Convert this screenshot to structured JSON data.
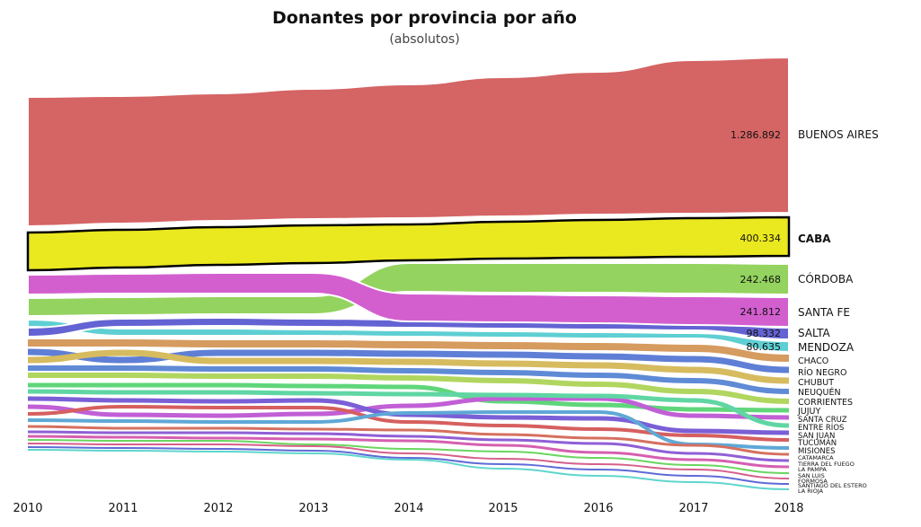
{
  "chart_data": {
    "type": "area",
    "title": "Donantes por provincia por año",
    "subtitle": "(absolutos)",
    "xlabel": "",
    "ylabel": "",
    "x": [
      "2010",
      "2011",
      "2012",
      "2013",
      "2014",
      "2015",
      "2016",
      "2017",
      "2018"
    ],
    "legend": "right, labels at series end",
    "grid": false,
    "highlighted_series": "CABA",
    "series": [
      {
        "name": "BUENOS AIRES",
        "color": "#d56465",
        "value_label": "1.286.892",
        "bold": false
      },
      {
        "name": "CABA",
        "color": "#eae81f",
        "value_label": "400.334",
        "bold": true
      },
      {
        "name": "CÓRDOBA",
        "color": "#94d35f",
        "value_label": "242.468",
        "bold": false
      },
      {
        "name": "SANTA FE",
        "color": "#d35fcf",
        "value_label": "241.812",
        "bold": false
      },
      {
        "name": "SALTA",
        "color": "#6463d3",
        "value_label": "98.332",
        "bold": false
      },
      {
        "name": "MENDOZA",
        "color": "#5ecfd3",
        "value_label": "80.635",
        "bold": false
      },
      {
        "name": "CHACO",
        "color": "#d69b5f",
        "value_label": "",
        "bold": false
      },
      {
        "name": "RÍO NEGRO",
        "color": "#5f7fd6",
        "value_label": "",
        "bold": false
      },
      {
        "name": "CHUBUT",
        "color": "#d6bb5f",
        "value_label": "",
        "bold": false
      },
      {
        "name": "NEUQUÉN",
        "color": "#5f8ad6",
        "value_label": "",
        "bold": false
      },
      {
        "name": "CORRIENTES",
        "color": "#b1d65f",
        "value_label": "",
        "bold": false
      },
      {
        "name": "JUJUY",
        "color": "#5fd67a",
        "value_label": "",
        "bold": false
      },
      {
        "name": "SANTA CRUZ",
        "color": "#c15fd6",
        "value_label": "",
        "bold": false
      },
      {
        "name": "ENTRE RÍOS",
        "color": "#5fd6a3",
        "value_label": "",
        "bold": false
      },
      {
        "name": "SAN JUAN",
        "color": "#7a5fd6",
        "value_label": "",
        "bold": false
      },
      {
        "name": "TUCUMÁN",
        "color": "#d65f5f",
        "value_label": "",
        "bold": false
      },
      {
        "name": "MISIONES",
        "color": "#5fa8d6",
        "value_label": "",
        "bold": false
      },
      {
        "name": "CATAMARCA",
        "color": "#d6705f",
        "value_label": "",
        "bold": false
      },
      {
        "name": "TIERRA DEL FUEGO",
        "color": "#8f5fd6",
        "value_label": "",
        "bold": false
      },
      {
        "name": "LA PAMPA",
        "color": "#d65fb0",
        "value_label": "",
        "bold": false
      },
      {
        "name": "SAN LUIS",
        "color": "#6ad65f",
        "value_label": "",
        "bold": false
      },
      {
        "name": "FORMOSA",
        "color": "#d65f8a",
        "value_label": "",
        "bold": false
      },
      {
        "name": "SANTIAGO DEL ESTERO",
        "color": "#5f6bd6",
        "value_label": "",
        "bold": false
      },
      {
        "name": "LA RIOJA",
        "color": "#5fd6cd",
        "value_label": "",
        "bold": false
      }
    ]
  }
}
